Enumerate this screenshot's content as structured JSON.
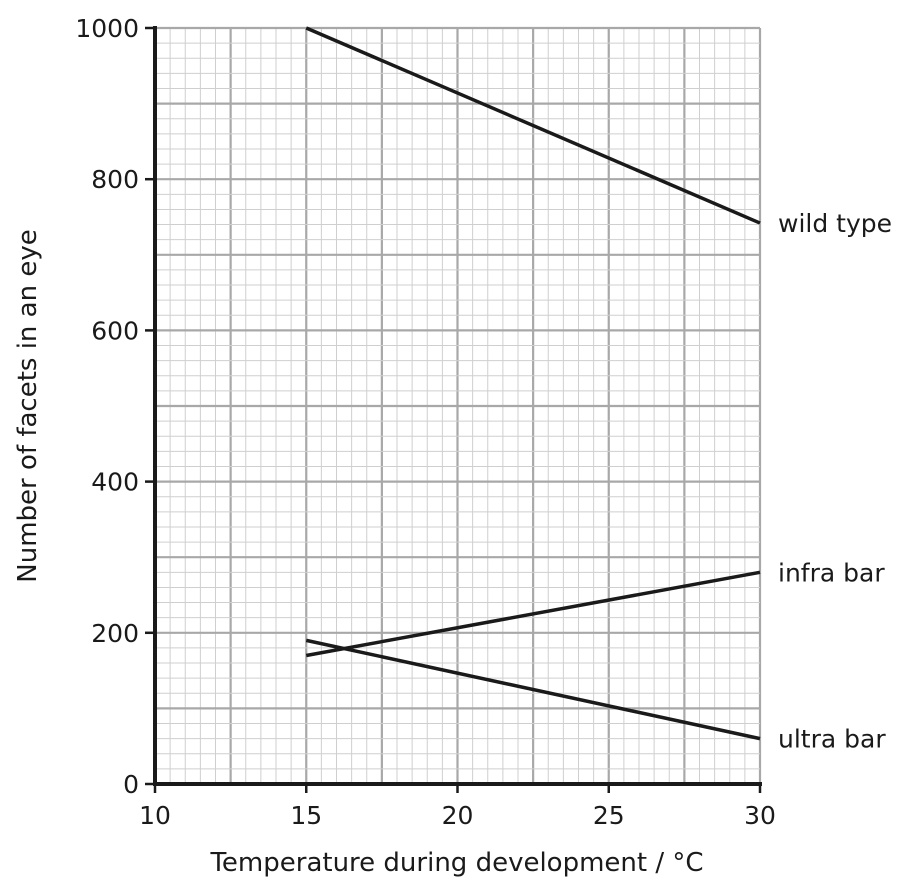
{
  "chart_data": {
    "type": "line",
    "title": "",
    "xlabel": "Temperature during development / °C",
    "ylabel": "Number of facets in an eye",
    "xlim": [
      10,
      30
    ],
    "ylim": [
      0,
      1000
    ],
    "xticks": [
      "10",
      "15",
      "20",
      "25",
      "30"
    ],
    "yticks": [
      "0",
      "200",
      "400",
      "600",
      "800",
      "1000"
    ],
    "grid": true,
    "legend": "none",
    "series": [
      {
        "name": "wild type",
        "x": [
          15,
          30
        ],
        "y": [
          1000,
          742
        ]
      },
      {
        "name": "infra bar",
        "x": [
          15,
          30
        ],
        "y": [
          170,
          280
        ]
      },
      {
        "name": "ultra bar",
        "x": [
          15,
          30
        ],
        "y": [
          190,
          60
        ]
      }
    ],
    "colors": {
      "line": "#1a1a1a",
      "grid_minor": "#cfcfcf",
      "grid_major": "#a8a8a8",
      "axis": "#1a1a1a"
    }
  }
}
